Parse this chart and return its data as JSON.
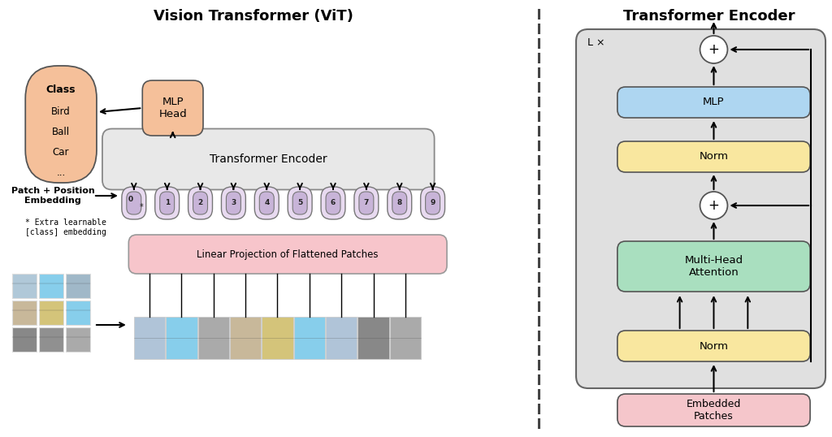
{
  "title_vit": "Vision Transformer (ViT)",
  "title_encoder": "Transformer Encoder",
  "bg_color": "#ffffff",
  "orange_color": "#f5c09a",
  "pink_color": "#f7c5cb",
  "token_color": "#c8b4d8",
  "gray_box_color": "#e0e0e0",
  "mlp_color": "#aed6f1",
  "norm_color": "#f9e79f",
  "attn_color": "#a9dfbf",
  "embedded_patches_color": "#f5c6cb",
  "circle_color": "#ffffff",
  "patch_tokens": [
    "0",
    "1",
    "2",
    "3",
    "4",
    "5",
    "6",
    "7",
    "8",
    "9"
  ]
}
